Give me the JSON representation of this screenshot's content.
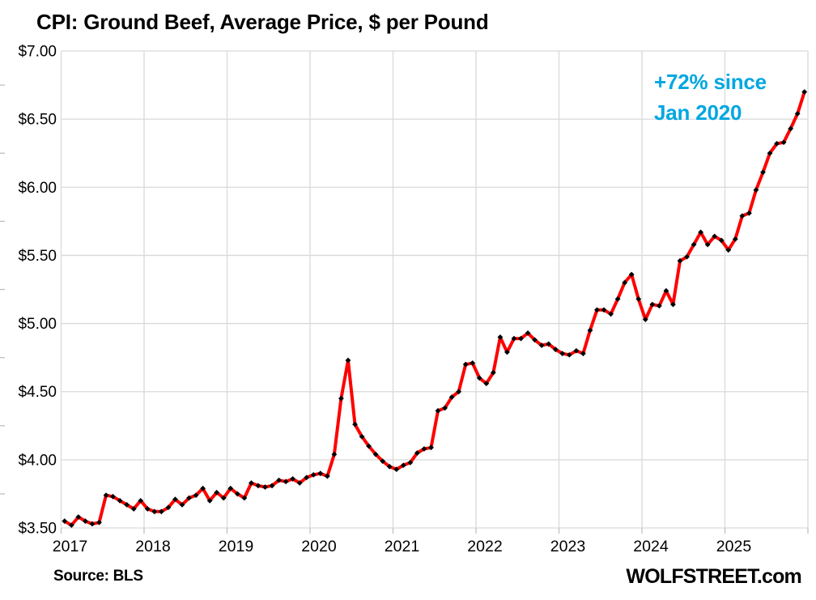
{
  "header": {
    "title": "CPI: Ground Beef, Average Price, $ per Pound"
  },
  "annotation": {
    "line1": "+72% since",
    "line2": "Jan 2020"
  },
  "footer": {
    "source": "Source: BLS",
    "watermark": "WOLFSTREET.com"
  },
  "colors": {
    "line": "#FF0000",
    "marker": "#000000",
    "annotation": "#00A7E1",
    "grid": "#D9D9D9",
    "tick": "#BFBFBF",
    "text": "#000000"
  },
  "chart_data": {
    "type": "line",
    "title": "CPI: Ground Beef, Average Price, $ per Pound",
    "ylabel": "$ per Pound",
    "frequency": "monthly",
    "x_start": "2017-01",
    "x_end": "2025-12",
    "ylim": [
      3.5,
      7.0
    ],
    "grid": true,
    "legend_position": "none",
    "y_tick_labels": [
      "$3.50",
      "$4.00",
      "$4.50",
      "$5.00",
      "$5.50",
      "$6.00",
      "$6.50",
      "$7.00"
    ],
    "x_tick_labels": [
      "2017",
      "2018",
      "2019",
      "2020",
      "2021",
      "2022",
      "2023",
      "2024",
      "2025"
    ],
    "series": [
      {
        "name": "Ground beef, average price, $ per pound",
        "values": [
          3.55,
          3.52,
          3.58,
          3.55,
          3.53,
          3.54,
          3.74,
          3.73,
          3.7,
          3.67,
          3.64,
          3.7,
          3.64,
          3.62,
          3.62,
          3.65,
          3.71,
          3.67,
          3.72,
          3.74,
          3.79,
          3.7,
          3.76,
          3.72,
          3.79,
          3.75,
          3.72,
          3.83,
          3.81,
          3.8,
          3.81,
          3.85,
          3.84,
          3.86,
          3.83,
          3.87,
          3.89,
          3.9,
          3.88,
          4.04,
          4.45,
          4.73,
          4.26,
          4.17,
          4.1,
          4.04,
          3.99,
          3.95,
          3.93,
          3.96,
          3.98,
          4.05,
          4.08,
          4.09,
          4.36,
          4.38,
          4.46,
          4.5,
          4.7,
          4.71,
          4.6,
          4.56,
          4.64,
          4.9,
          4.79,
          4.89,
          4.89,
          4.93,
          4.88,
          4.84,
          4.85,
          4.81,
          4.78,
          4.77,
          4.8,
          4.78,
          4.95,
          5.1,
          5.1,
          5.07,
          5.18,
          5.3,
          5.36,
          5.18,
          5.03,
          5.14,
          5.13,
          5.24,
          5.14,
          5.46,
          5.49,
          5.58,
          5.67,
          5.58,
          5.64,
          5.61,
          5.54,
          5.62,
          5.79,
          5.81,
          5.98,
          6.11,
          6.25,
          6.32,
          6.33,
          6.43,
          6.54,
          6.7
        ]
      }
    ]
  }
}
